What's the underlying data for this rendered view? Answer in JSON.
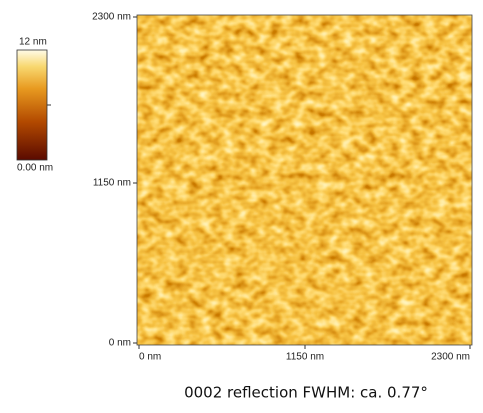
{
  "colorbar": {
    "max_label": "12 nm",
    "min_label": "0.00 nm"
  },
  "image": {
    "y_labels": [
      "2300 nm",
      "1150 nm",
      "0 nm"
    ],
    "x_labels": [
      "0 nm",
      "1150 nm",
      "2300 nm"
    ]
  },
  "caption": "0002 reflection FWHM: ca. 0.77°"
}
